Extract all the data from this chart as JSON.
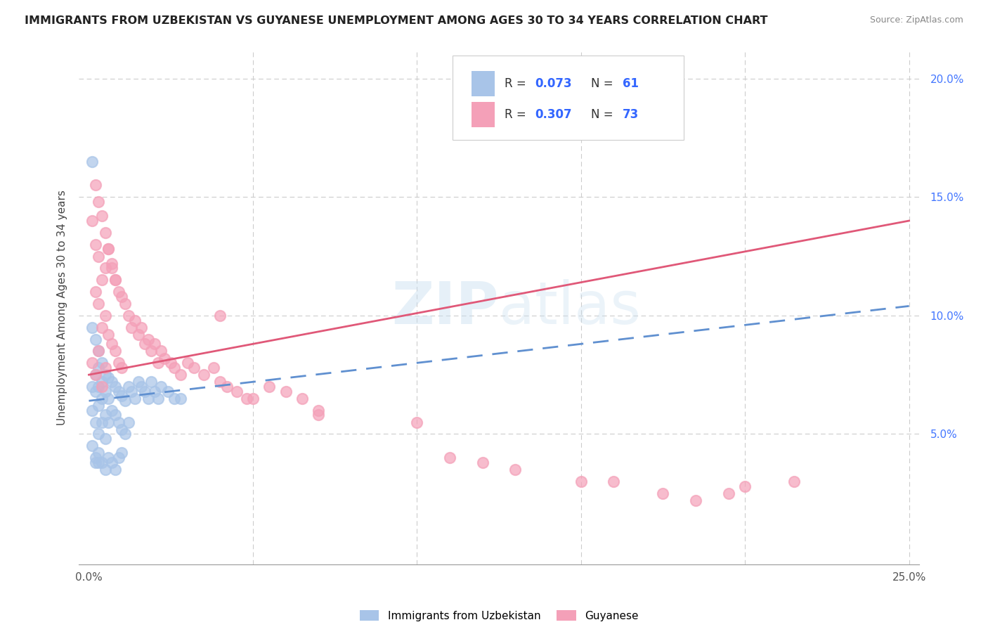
{
  "title": "IMMIGRANTS FROM UZBEKISTAN VS GUYANESE UNEMPLOYMENT AMONG AGES 30 TO 34 YEARS CORRELATION CHART",
  "source": "Source: ZipAtlas.com",
  "ylabel": "Unemployment Among Ages 30 to 34 years",
  "x_min": 0.0,
  "x_max": 0.25,
  "y_min": 0.0,
  "y_max": 0.21,
  "legend_label_1": "Immigrants from Uzbekistan",
  "legend_label_2": "Guyanese",
  "R1": "0.073",
  "N1": "61",
  "R2": "0.307",
  "N2": "73",
  "color_uzbek": "#a8c4e8",
  "color_guyanese": "#f4a0b8",
  "color_uzbek_line": "#6090d0",
  "color_guyanese_line": "#e05878",
  "watermark": "ZIPatlas",
  "uzbek_line_start_y": 0.064,
  "uzbek_line_end_y": 0.104,
  "guyanese_line_start_y": 0.075,
  "guyanese_line_end_y": 0.14,
  "uzbek_x": [
    0.001,
    0.001,
    0.001,
    0.001,
    0.002,
    0.002,
    0.002,
    0.002,
    0.002,
    0.003,
    0.003,
    0.003,
    0.003,
    0.003,
    0.004,
    0.004,
    0.004,
    0.004,
    0.005,
    0.005,
    0.005,
    0.005,
    0.006,
    0.006,
    0.006,
    0.007,
    0.007,
    0.008,
    0.008,
    0.009,
    0.009,
    0.01,
    0.01,
    0.011,
    0.011,
    0.012,
    0.012,
    0.013,
    0.014,
    0.015,
    0.016,
    0.017,
    0.018,
    0.019,
    0.02,
    0.021,
    0.022,
    0.024,
    0.026,
    0.028,
    0.001,
    0.002,
    0.003,
    0.003,
    0.004,
    0.005,
    0.006,
    0.007,
    0.008,
    0.009,
    0.01
  ],
  "uzbek_y": [
    0.095,
    0.07,
    0.06,
    0.045,
    0.09,
    0.075,
    0.068,
    0.055,
    0.04,
    0.085,
    0.078,
    0.07,
    0.062,
    0.05,
    0.08,
    0.072,
    0.065,
    0.055,
    0.075,
    0.068,
    0.058,
    0.048,
    0.074,
    0.065,
    0.055,
    0.072,
    0.06,
    0.07,
    0.058,
    0.068,
    0.055,
    0.066,
    0.052,
    0.064,
    0.05,
    0.07,
    0.055,
    0.068,
    0.065,
    0.072,
    0.07,
    0.068,
    0.065,
    0.072,
    0.068,
    0.065,
    0.07,
    0.068,
    0.065,
    0.065,
    0.165,
    0.038,
    0.038,
    0.042,
    0.038,
    0.035,
    0.04,
    0.038,
    0.035,
    0.04,
    0.042
  ],
  "guyanese_x": [
    0.001,
    0.001,
    0.002,
    0.002,
    0.002,
    0.003,
    0.003,
    0.003,
    0.004,
    0.004,
    0.004,
    0.005,
    0.005,
    0.005,
    0.006,
    0.006,
    0.007,
    0.007,
    0.008,
    0.008,
    0.009,
    0.009,
    0.01,
    0.01,
    0.011,
    0.012,
    0.013,
    0.014,
    0.015,
    0.016,
    0.017,
    0.018,
    0.019,
    0.02,
    0.021,
    0.022,
    0.023,
    0.025,
    0.026,
    0.028,
    0.03,
    0.032,
    0.035,
    0.038,
    0.04,
    0.042,
    0.045,
    0.048,
    0.05,
    0.055,
    0.06,
    0.065,
    0.07,
    0.002,
    0.003,
    0.004,
    0.005,
    0.006,
    0.007,
    0.008,
    0.04,
    0.07,
    0.1,
    0.16,
    0.175,
    0.2,
    0.215,
    0.185,
    0.195,
    0.15,
    0.13,
    0.12,
    0.11
  ],
  "guyanese_y": [
    0.08,
    0.14,
    0.13,
    0.11,
    0.075,
    0.125,
    0.105,
    0.085,
    0.115,
    0.095,
    0.07,
    0.12,
    0.1,
    0.078,
    0.128,
    0.092,
    0.12,
    0.088,
    0.115,
    0.085,
    0.11,
    0.08,
    0.108,
    0.078,
    0.105,
    0.1,
    0.095,
    0.098,
    0.092,
    0.095,
    0.088,
    0.09,
    0.085,
    0.088,
    0.08,
    0.085,
    0.082,
    0.08,
    0.078,
    0.075,
    0.08,
    0.078,
    0.075,
    0.078,
    0.072,
    0.07,
    0.068,
    0.065,
    0.065,
    0.07,
    0.068,
    0.065,
    0.06,
    0.155,
    0.148,
    0.142,
    0.135,
    0.128,
    0.122,
    0.115,
    0.1,
    0.058,
    0.055,
    0.03,
    0.025,
    0.028,
    0.03,
    0.022,
    0.025,
    0.03,
    0.035,
    0.038,
    0.04
  ]
}
